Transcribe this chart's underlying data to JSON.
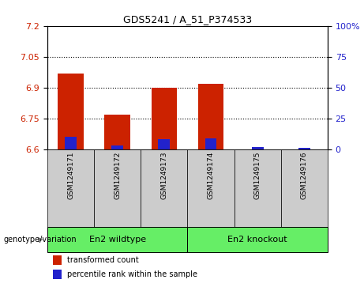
{
  "title": "GDS5241 / A_51_P374533",
  "samples": [
    "GSM1249171",
    "GSM1249172",
    "GSM1249173",
    "GSM1249174",
    "GSM1249175",
    "GSM1249176"
  ],
  "red_values": [
    6.97,
    6.77,
    6.9,
    6.92,
    6.6,
    6.6
  ],
  "blue_values": [
    10,
    3,
    8,
    9,
    2,
    1
  ],
  "ylim_left": [
    6.6,
    7.2
  ],
  "ylim_right": [
    0,
    100
  ],
  "yticks_left": [
    6.6,
    6.75,
    6.9,
    7.05,
    7.2
  ],
  "yticks_right": [
    0,
    25,
    50,
    75,
    100
  ],
  "hlines": [
    7.05,
    6.9,
    6.75
  ],
  "groups": [
    {
      "label": "En2 wildtype",
      "indices": [
        0,
        1,
        2
      ],
      "color": "#66ee66"
    },
    {
      "label": "En2 knockout",
      "indices": [
        3,
        4,
        5
      ],
      "color": "#66ee66"
    }
  ],
  "group_row_color": "#66ee66",
  "sample_row_color": "#cccccc",
  "bar_bottom": 6.6,
  "red_color": "#cc2200",
  "blue_color": "#2222cc",
  "bar_width": 0.55,
  "blue_bar_width": 0.25,
  "legend_items": [
    {
      "label": "transformed count",
      "color": "#cc2200"
    },
    {
      "label": "percentile rank within the sample",
      "color": "#2222cc"
    }
  ],
  "genotype_label": "genotype/variation",
  "left_tick_color": "#cc2200",
  "right_tick_color": "#2222cc",
  "title_fontsize": 9,
  "tick_fontsize": 8,
  "sample_fontsize": 6.5,
  "group_fontsize": 8,
  "legend_fontsize": 7
}
